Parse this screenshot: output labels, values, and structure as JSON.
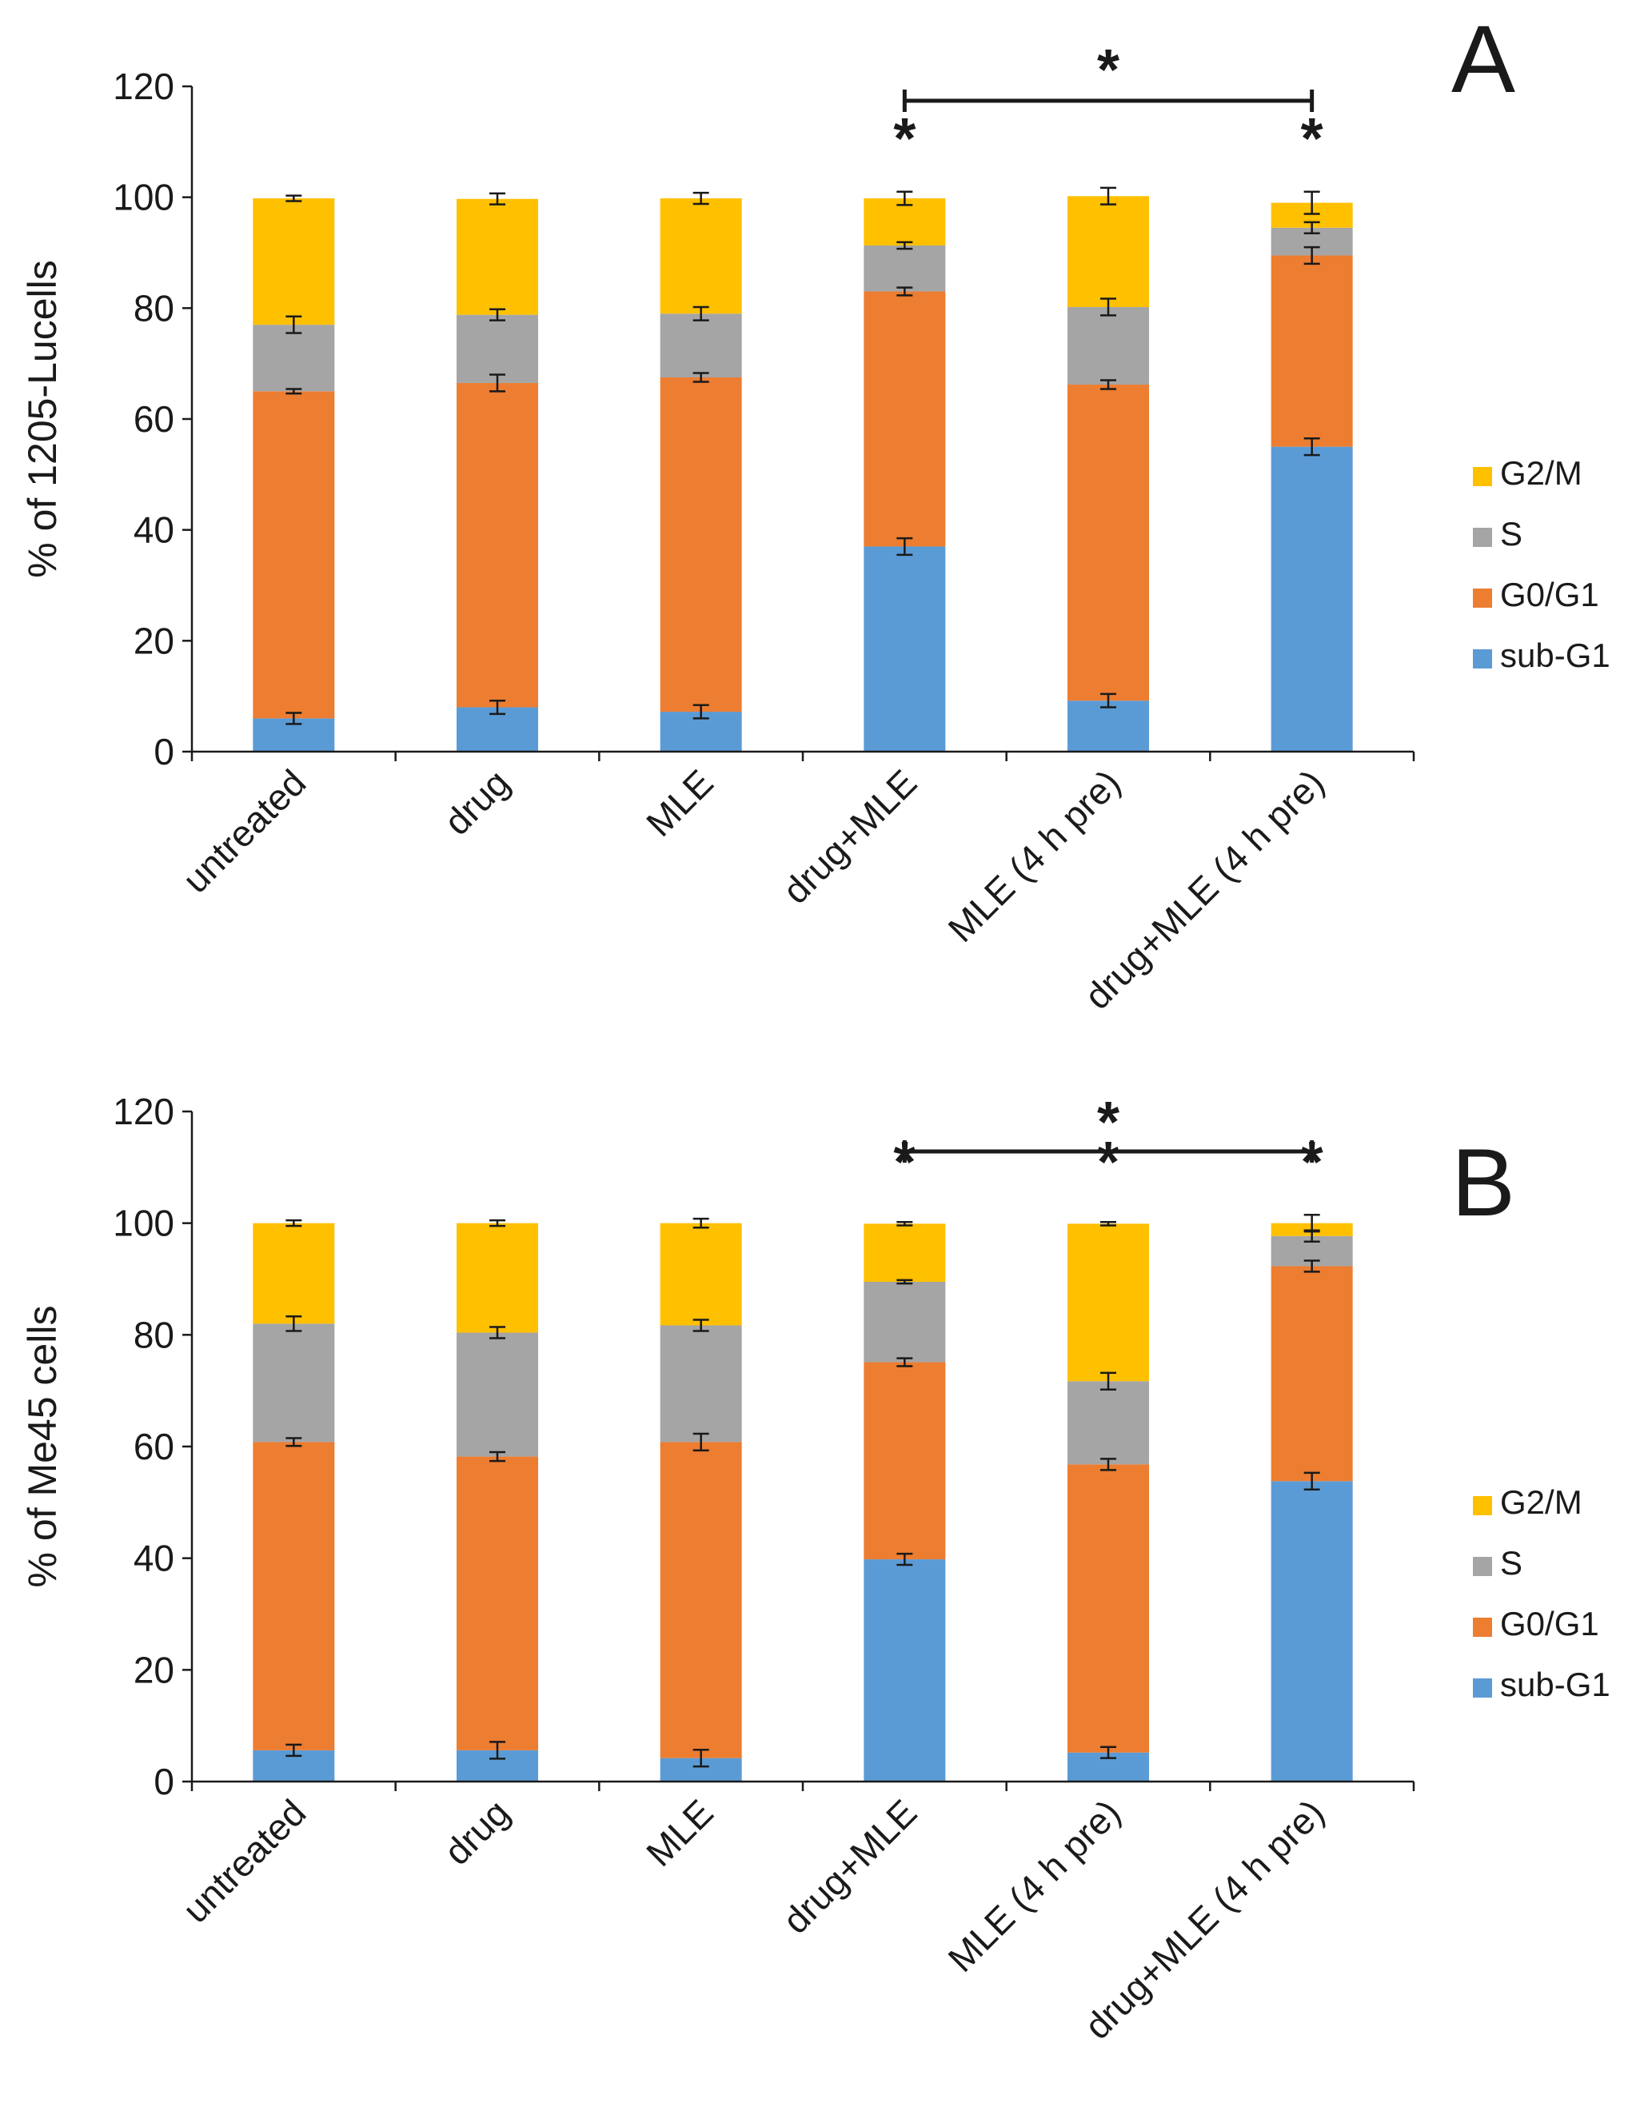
{
  "colors": {
    "sub_g1": "#5B9BD5",
    "g0_g1": "#ED7D31",
    "s": "#A5A5A5",
    "g2_m": "#FFC000",
    "axis": "#1a1a1a"
  },
  "chart_data": [
    {
      "type": "bar",
      "stacked": true,
      "panel_letter": "A",
      "title": "",
      "xlabel": "",
      "ylabel": "% of 1205-Lucells",
      "ylim": [
        0,
        120
      ],
      "yticks": [
        "0",
        "20",
        "40",
        "60",
        "80",
        "100",
        "120"
      ],
      "grid": false,
      "legend_position": "right",
      "categories": [
        "untreated",
        "drug",
        "MLE",
        "drug+MLE",
        "MLE (4 h pre)",
        "drug+MLE (4 h pre)"
      ],
      "series": [
        {
          "key": "sub_g1",
          "name": "sub-G1",
          "values": [
            6,
            8,
            7.2,
            37,
            9.2,
            55
          ],
          "errors": [
            1,
            1.2,
            1.2,
            1.5,
            1.2,
            1.5
          ]
        },
        {
          "key": "g0_g1",
          "name": "G0/G1",
          "values": [
            59,
            58.5,
            60.3,
            46,
            57,
            34.5
          ],
          "errors": [
            0.4,
            1.5,
            0.8,
            0.7,
            0.8,
            1.5
          ]
        },
        {
          "key": "s",
          "name": "S",
          "values": [
            12,
            12.3,
            11.5,
            8.3,
            14,
            5
          ],
          "errors": [
            1.5,
            1.0,
            1.2,
            0.6,
            1.5,
            1.0
          ]
        },
        {
          "key": "g2_m",
          "name": "G2/M",
          "values": [
            22.8,
            20.9,
            20.8,
            8.5,
            20,
            4.5
          ],
          "errors": [
            0.5,
            1.0,
            1.0,
            1.2,
            1.5,
            2.0
          ]
        }
      ],
      "significance": {
        "bracket_from": "drug+MLE",
        "bracket_to": "drug+MLE (4 h pre)",
        "bracket_label": "*",
        "bar_stars": [
          "",
          "",
          "",
          "*",
          "",
          "*"
        ]
      }
    },
    {
      "type": "bar",
      "stacked": true,
      "panel_letter": "B",
      "title": "",
      "xlabel": "",
      "ylabel": "% of Me45 cells",
      "ylim": [
        0,
        120
      ],
      "yticks": [
        "0",
        "20",
        "40",
        "60",
        "80",
        "100",
        "120"
      ],
      "grid": false,
      "legend_position": "right",
      "categories": [
        "untreated",
        "drug",
        "MLE",
        "drug+MLE",
        "MLE (4 h pre)",
        "drug+MLE (4 h pre)"
      ],
      "series": [
        {
          "key": "sub_g1",
          "name": "sub-G1",
          "values": [
            5.6,
            5.6,
            4.2,
            39.8,
            5.2,
            53.8
          ],
          "errors": [
            1.0,
            1.5,
            1.5,
            1.0,
            1.0,
            1.5
          ]
        },
        {
          "key": "g0_g1",
          "name": "G0/G1",
          "values": [
            55.2,
            52.6,
            56.6,
            35.3,
            51.6,
            38.5
          ],
          "errors": [
            0.7,
            0.8,
            1.5,
            0.7,
            1.0,
            1.0
          ]
        },
        {
          "key": "s",
          "name": "S",
          "values": [
            21.2,
            22.2,
            20.9,
            14.4,
            14.9,
            5.4
          ],
          "errors": [
            1.3,
            1.0,
            1.0,
            0.3,
            1.5,
            1.0
          ]
        },
        {
          "key": "g2_m",
          "name": "G2/M",
          "values": [
            18,
            19.6,
            18.3,
            10.4,
            28.2,
            2.3
          ],
          "errors": [
            0.5,
            0.5,
            0.8,
            0.3,
            0.3,
            1.5
          ]
        }
      ],
      "significance": {
        "bracket_from": "drug+MLE",
        "bracket_to": "drug+MLE (4 h pre)",
        "bracket_label": "*",
        "bar_stars": [
          "",
          "",
          "",
          "*",
          "*",
          "*"
        ]
      }
    }
  ]
}
